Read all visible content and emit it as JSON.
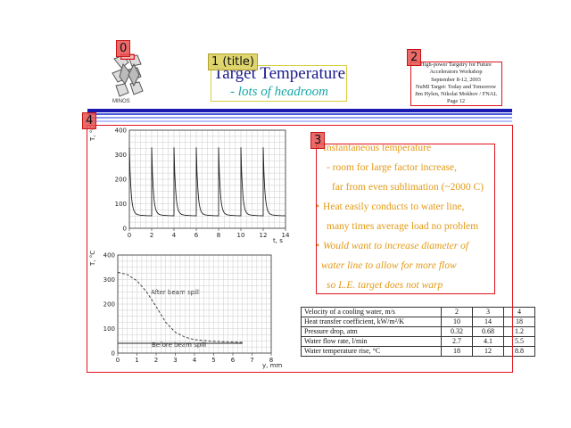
{
  "annotations": [
    {
      "id": "0",
      "label": "0"
    },
    {
      "id": "1",
      "label": "1 (title)"
    },
    {
      "id": "2",
      "label": "2"
    },
    {
      "id": "3",
      "label": "3"
    },
    {
      "id": "4",
      "label": "4"
    }
  ],
  "logo": {
    "text": "MINOS"
  },
  "title": {
    "line1": "Target Temperature",
    "line2": "- lots of headroom"
  },
  "header": {
    "lines": [
      "High-power Targetry for Future",
      "Accelerators Workshop",
      "September 8-12, 2003",
      "NuMI Target: Today and Tomorrow",
      "Jim Hylen, Nikolai Mokhov / FNAL",
      "Page 12"
    ]
  },
  "bullets": [
    {
      "type": "bullet",
      "text": "Instantaneous temperature",
      "style": "normal"
    },
    {
      "type": "sub",
      "text": "- room for large factor increase,",
      "style": "normal"
    },
    {
      "type": "sub2",
      "text": "far from even sublimation (~2000 C)",
      "style": "normal"
    },
    {
      "type": "bullet",
      "text": "Heat easily conducts to water line,",
      "style": "normal"
    },
    {
      "type": "sub",
      "text": "many times average load no problem",
      "style": "normal"
    },
    {
      "type": "bullet",
      "text": "Would want to increase diameter of",
      "style": "italic"
    },
    {
      "type": "sub0",
      "text": "water line to allow for more flow",
      "style": "italic"
    },
    {
      "type": "sub",
      "text": "so L.E. target does not warp",
      "style": "italic"
    }
  ],
  "table": {
    "header": [
      "Velocity of a cooling water, m/s",
      "2",
      "3",
      "4"
    ],
    "rows": [
      [
        "Heat transfer coefficient, kW/m²/K",
        "10",
        "14",
        "18"
      ],
      [
        "Pressure drop, atm",
        "0.32",
        "0.68",
        "1.2"
      ],
      [
        "Water flow rate, l/min",
        "2.7",
        "4.1",
        "5.5"
      ],
      [
        "Water temperature rise, °C",
        "18",
        "12",
        "8.8"
      ]
    ]
  },
  "chart_data": [
    {
      "type": "line",
      "ylabel": "T, °C",
      "xlabel": "t, s",
      "xlim": [
        0,
        14
      ],
      "ylim": [
        0,
        400
      ],
      "xticks": [
        "0",
        "2",
        "4",
        "6",
        "8",
        "10",
        "12",
        "14"
      ],
      "yticks": [
        "0",
        "100",
        "200",
        "300",
        "400"
      ],
      "series": [
        {
          "spikes_at_s": [
            0,
            2,
            4,
            6,
            8,
            10,
            12
          ],
          "peak": 330,
          "baseline": 60
        }
      ],
      "grid": true
    },
    {
      "type": "line",
      "ylabel": "T, °C",
      "xlabel": "y, mm",
      "xlim": [
        0,
        8
      ],
      "ylim": [
        0,
        400
      ],
      "xticks": [
        "0",
        "1",
        "2",
        "3",
        "4",
        "5",
        "6",
        "7",
        "8"
      ],
      "yticks": [
        "0",
        "100",
        "200",
        "300",
        "400"
      ],
      "annotations": [
        "After beam spill",
        "Before beam spill"
      ],
      "series": [
        {
          "x": [
            0,
            0.5,
            1,
            1.5,
            2,
            2.5,
            3,
            3.5,
            4,
            5,
            6,
            6.5
          ],
          "y": [
            330,
            320,
            295,
            250,
            190,
            125,
            85,
            65,
            55,
            48,
            45,
            44
          ]
        },
        {
          "x": [
            0,
            6.5
          ],
          "y": [
            40,
            40
          ]
        }
      ],
      "grid": true
    }
  ],
  "colors": {
    "stripe_dark": "#1a1ab0",
    "stripe_light": "#a8b8ff",
    "bullet": "#e39a16",
    "title": "#1a1a8c",
    "subtitle": "#17a7a7"
  }
}
